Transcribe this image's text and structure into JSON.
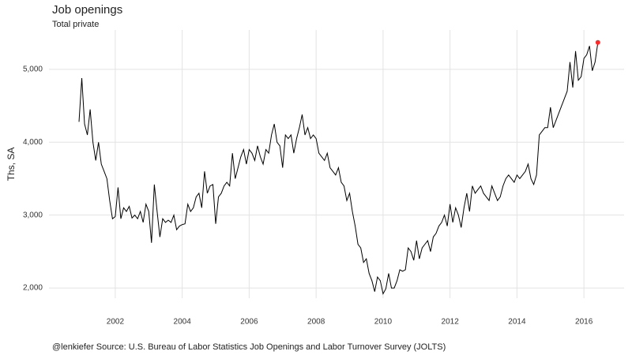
{
  "chart_data": {
    "type": "line",
    "title": "Job openings",
    "subtitle": "Total private",
    "y_label": "Ths, SA",
    "caption": "@lenkiefer Source: U.S. Bureau of Labor Statistics Job Openings and Labor Turnover Survey (JOLTS)",
    "x": [
      2000.917,
      2001.0,
      2001.083,
      2001.167,
      2001.25,
      2001.333,
      2001.417,
      2001.5,
      2001.583,
      2001.667,
      2001.75,
      2001.833,
      2001.917,
      2002.0,
      2002.083,
      2002.167,
      2002.25,
      2002.333,
      2002.417,
      2002.5,
      2002.583,
      2002.667,
      2002.75,
      2002.833,
      2002.917,
      2003.0,
      2003.083,
      2003.167,
      2003.25,
      2003.333,
      2003.417,
      2003.5,
      2003.583,
      2003.667,
      2003.75,
      2003.833,
      2003.917,
      2004.0,
      2004.083,
      2004.167,
      2004.25,
      2004.333,
      2004.417,
      2004.5,
      2004.583,
      2004.667,
      2004.75,
      2004.833,
      2004.917,
      2005.0,
      2005.083,
      2005.167,
      2005.25,
      2005.333,
      2005.417,
      2005.5,
      2005.583,
      2005.667,
      2005.75,
      2005.833,
      2005.917,
      2006.0,
      2006.083,
      2006.167,
      2006.25,
      2006.333,
      2006.417,
      2006.5,
      2006.583,
      2006.667,
      2006.75,
      2006.833,
      2006.917,
      2007.0,
      2007.083,
      2007.167,
      2007.25,
      2007.333,
      2007.417,
      2007.5,
      2007.583,
      2007.667,
      2007.75,
      2007.833,
      2007.917,
      2008.0,
      2008.083,
      2008.167,
      2008.25,
      2008.333,
      2008.417,
      2008.5,
      2008.583,
      2008.667,
      2008.75,
      2008.833,
      2008.917,
      2009.0,
      2009.083,
      2009.167,
      2009.25,
      2009.333,
      2009.417,
      2009.5,
      2009.583,
      2009.667,
      2009.75,
      2009.833,
      2009.917,
      2010.0,
      2010.083,
      2010.167,
      2010.25,
      2010.333,
      2010.417,
      2010.5,
      2010.583,
      2010.667,
      2010.75,
      2010.833,
      2010.917,
      2011.0,
      2011.083,
      2011.167,
      2011.25,
      2011.333,
      2011.417,
      2011.5,
      2011.583,
      2011.667,
      2011.75,
      2011.833,
      2011.917,
      2012.0,
      2012.083,
      2012.167,
      2012.25,
      2012.333,
      2012.417,
      2012.5,
      2012.583,
      2012.667,
      2012.75,
      2012.833,
      2012.917,
      2013.0,
      2013.083,
      2013.167,
      2013.25,
      2013.333,
      2013.417,
      2013.5,
      2013.583,
      2013.667,
      2013.75,
      2013.833,
      2013.917,
      2014.0,
      2014.083,
      2014.167,
      2014.25,
      2014.333,
      2014.417,
      2014.5,
      2014.583,
      2014.667,
      2014.75,
      2014.833,
      2014.917,
      2015.0,
      2015.083,
      2015.167,
      2015.25,
      2015.333,
      2015.417,
      2015.5,
      2015.583,
      2015.667,
      2015.75,
      2015.833,
      2015.917,
      2016.0,
      2016.083,
      2016.167,
      2016.25,
      2016.333,
      2016.417
    ],
    "series": [
      {
        "name": "Job openings",
        "color": "#000000",
        "values": [
          4280,
          4880,
          4250,
          4100,
          4450,
          4000,
          3750,
          4000,
          3700,
          3600,
          3500,
          3200,
          2950,
          2980,
          3380,
          2950,
          3100,
          3050,
          3120,
          2960,
          3000,
          2950,
          3050,
          2900,
          3150,
          3050,
          2620,
          3420,
          3050,
          2700,
          2950,
          2900,
          2930,
          2900,
          3000,
          2800,
          2850,
          2870,
          2880,
          3150,
          3050,
          3100,
          3250,
          3300,
          3100,
          3600,
          3300,
          3400,
          3420,
          2880,
          3250,
          3300,
          3400,
          3450,
          3400,
          3850,
          3500,
          3650,
          3800,
          3900,
          3700,
          3900,
          3850,
          3750,
          3950,
          3800,
          3700,
          3900,
          3850,
          4100,
          4250,
          4000,
          3950,
          3650,
          4100,
          4050,
          4100,
          3850,
          4050,
          4200,
          4380,
          4100,
          4200,
          4050,
          4100,
          4050,
          3850,
          3800,
          3750,
          3850,
          3650,
          3600,
          3550,
          3650,
          3450,
          3400,
          3200,
          3300,
          3050,
          2850,
          2600,
          2550,
          2350,
          2400,
          2200,
          2100,
          1950,
          2150,
          2100,
          1920,
          1990,
          2200,
          2000,
          2000,
          2100,
          2250,
          2230,
          2250,
          2550,
          2500,
          2380,
          2650,
          2400,
          2550,
          2600,
          2650,
          2500,
          2700,
          2750,
          2850,
          2900,
          3000,
          2850,
          3150,
          2900,
          3100,
          3000,
          2830,
          3100,
          3300,
          3050,
          3400,
          3300,
          3350,
          3400,
          3300,
          3250,
          3200,
          3400,
          3300,
          3200,
          3250,
          3400,
          3500,
          3550,
          3500,
          3450,
          3550,
          3500,
          3550,
          3600,
          3700,
          3500,
          3420,
          3550,
          4100,
          4150,
          4200,
          4200,
          4480,
          4200,
          4300,
          4400,
          4500,
          4600,
          4700,
          5100,
          4750,
          5250,
          4850,
          4900,
          5150,
          5200,
          5320,
          4980,
          5100,
          5370
        ]
      }
    ],
    "last_point_color": "#ff2b2b",
    "xlim": [
      2000.02,
      2017.2
    ],
    "xticks": [
      2002,
      2004,
      2006,
      2008,
      2010,
      2012,
      2014,
      2016
    ],
    "ylim": [
      1860,
      5540
    ],
    "yticks": [
      {
        "value": 2000,
        "label": "2,000"
      },
      {
        "value": 3000,
        "label": "3,000"
      },
      {
        "value": 4000,
        "label": "4,000"
      },
      {
        "value": 5000,
        "label": "5,000"
      }
    ],
    "grid": true
  }
}
